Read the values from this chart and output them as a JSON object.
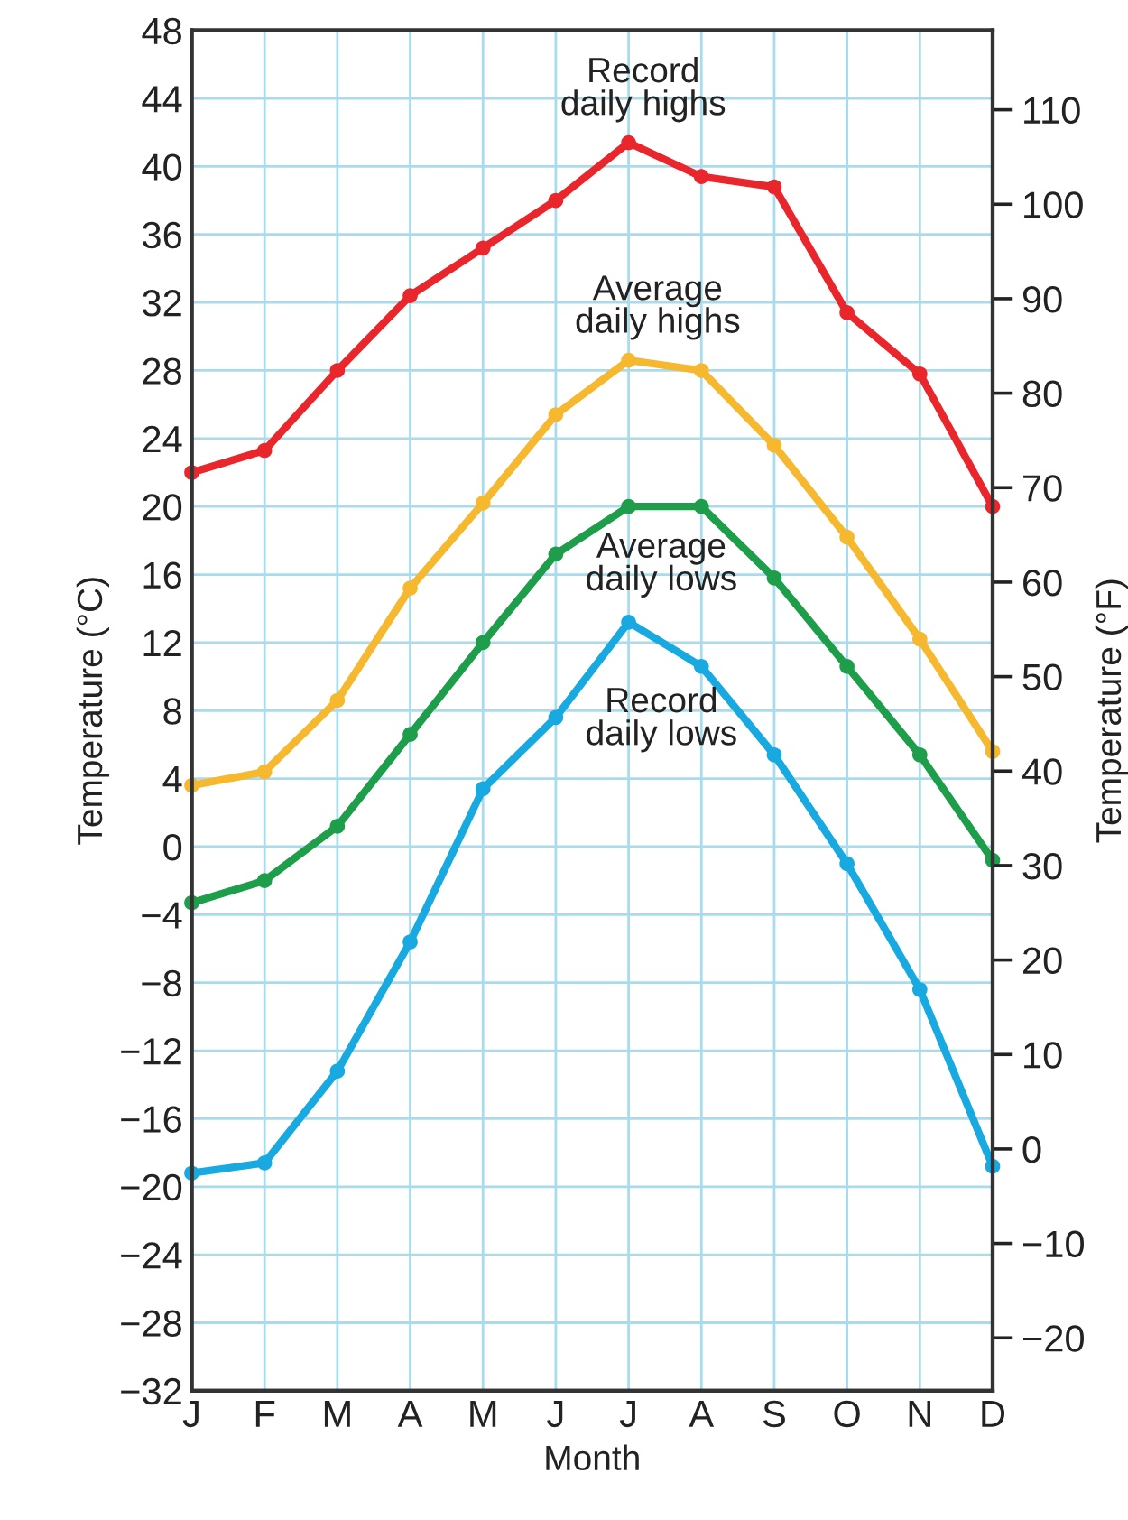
{
  "chart_data": {
    "type": "line",
    "xlabel": "Month",
    "ylabel": "Temperature (°C)",
    "y2label": "Temperature (°F)",
    "categories": [
      "J",
      "F",
      "M",
      "A",
      "M",
      "J",
      "J",
      "A",
      "S",
      "O",
      "N",
      "D"
    ],
    "series": [
      {
        "name": "Record\ndaily highs",
        "color": "#e8262b",
        "values": [
          22,
          23.3,
          28,
          32.4,
          35.2,
          38,
          41.4,
          39.4,
          38.8,
          31.4,
          27.8,
          20
        ]
      },
      {
        "name": "Average\ndaily highs",
        "color": "#f5b82e",
        "values": [
          3.6,
          4.4,
          8.6,
          15.2,
          20.2,
          25.4,
          28.6,
          28,
          23.6,
          18.2,
          12.2,
          5.6
        ]
      },
      {
        "name": "Average\ndaily lows",
        "color": "#1e9e4a",
        "values": [
          -3.3,
          -2,
          1.2,
          6.6,
          12,
          17.2,
          20,
          20,
          15.8,
          10.6,
          5.4,
          -0.8
        ]
      },
      {
        "name": "Record\ndaily lows",
        "color": "#18a9e0",
        "values": [
          -19.2,
          -18.6,
          -13.2,
          -5.6,
          3.4,
          7.6,
          13.2,
          10.6,
          5.4,
          -1,
          -8.4,
          -18.8
        ]
      }
    ],
    "ylim": [
      -32,
      48
    ],
    "yticks": [
      -32,
      -28,
      -24,
      -20,
      -16,
      -12,
      -8,
      -4,
      0,
      4,
      8,
      12,
      16,
      20,
      24,
      28,
      32,
      36,
      40,
      44,
      48
    ],
    "y2lim": [
      -25.6,
      118.4
    ],
    "y2ticks": [
      -20,
      -10,
      0,
      10,
      20,
      30,
      40,
      50,
      60,
      70,
      80,
      90,
      100,
      110
    ],
    "grid": true,
    "marker": "circle",
    "line_style": "solid",
    "legend": false
  }
}
